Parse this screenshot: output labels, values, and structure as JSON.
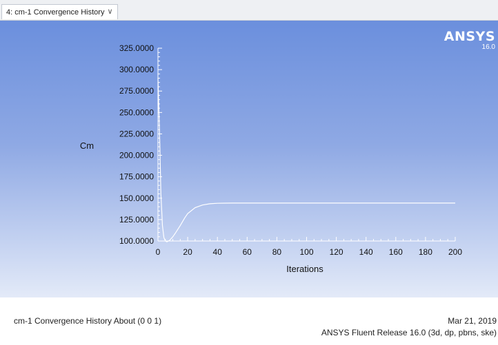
{
  "tab": {
    "label": "4: cm-1 Convergence History",
    "chevron_icon": "chevron-down-icon"
  },
  "logo": {
    "brand": "ANSYS",
    "version": "16.0"
  },
  "footer": {
    "title": "cm-1 Convergence History About (0 0 1)",
    "date": "Mar 21, 2019",
    "release": "ANSYS Fluent Release 16.0 (3d, dp, pbns, ske)"
  },
  "colors": {
    "plot_top": "#6b8fdd",
    "plot_bottom": "#e3eaf8",
    "curve": "#ffffff",
    "axis_text": "#111111"
  },
  "chart_data": {
    "type": "line",
    "xlabel": "Iterations",
    "ylabel": "Cm",
    "xlim": [
      0,
      200
    ],
    "ylim": [
      100,
      325
    ],
    "x_ticks": [
      0,
      20,
      40,
      60,
      80,
      100,
      120,
      140,
      160,
      180,
      200
    ],
    "y_ticks": [
      "100.0000",
      "125.0000",
      "150.0000",
      "175.0000",
      "200.0000",
      "225.0000",
      "250.0000",
      "275.0000",
      "300.0000",
      "325.0000"
    ],
    "grid": false,
    "series": [
      {
        "x": [
          0,
          1,
          2,
          3,
          4,
          5,
          6,
          7,
          8,
          10,
          12,
          15,
          18,
          20,
          25,
          30,
          35,
          40,
          45,
          50,
          60,
          80,
          100,
          120,
          140,
          160,
          180,
          200
        ],
        "y": [
          290,
          230,
          155,
          118,
          104,
          100,
          99,
          100,
          101,
          105,
          110,
          118,
          127,
          132,
          139,
          142,
          143.5,
          144,
          144.2,
          144.3,
          144.3,
          144.3,
          144.3,
          144.3,
          144.3,
          144.3,
          144.3,
          144.3
        ]
      }
    ]
  }
}
